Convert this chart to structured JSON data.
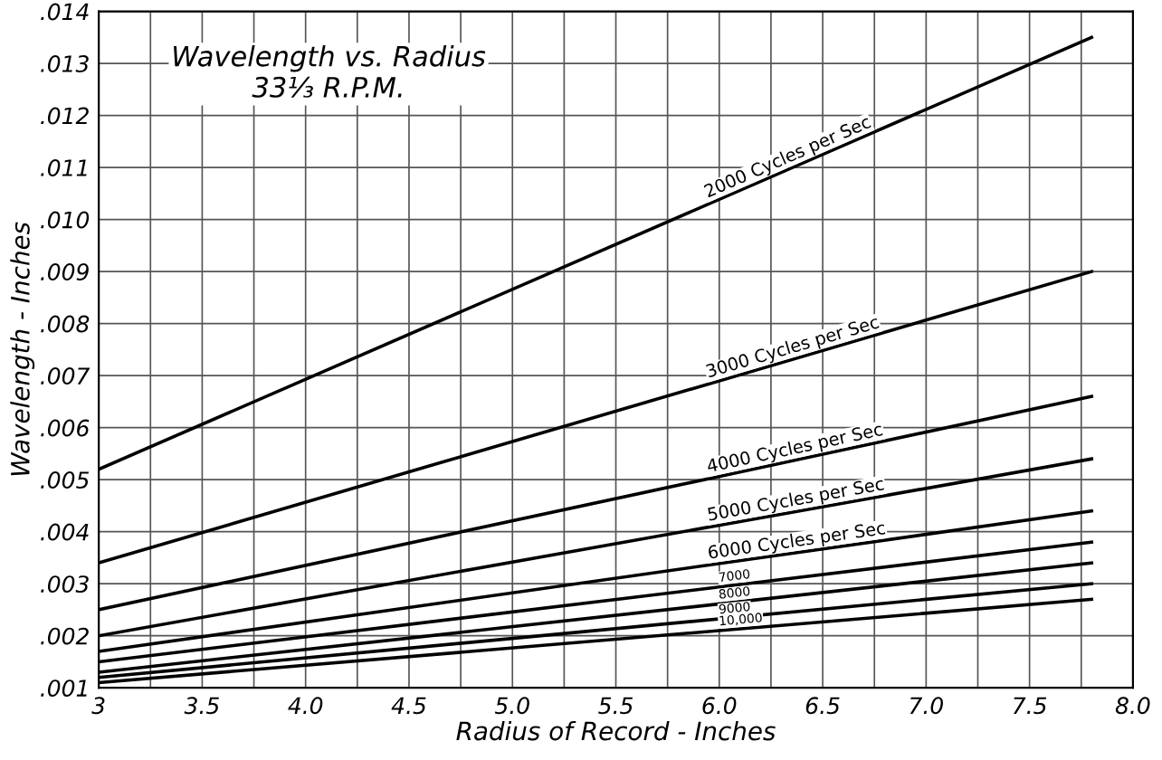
{
  "chart_data": {
    "type": "line",
    "title": "Wavelength vs. Radius\n33⅓ R.P.M.",
    "xlabel": "Radius of Record - Inches",
    "ylabel": "Wavelength - Inches",
    "x": [
      3,
      7.8
    ],
    "series": [
      {
        "name": "2000 Cycles per Sec",
        "color": "#000000",
        "values": [
          0.0052,
          0.0135
        ]
      },
      {
        "name": "3000 Cycles per Sec",
        "color": "#000000",
        "values": [
          0.0034,
          0.009
        ]
      },
      {
        "name": "4000 Cycles per Sec",
        "color": "#000000",
        "values": [
          0.0025,
          0.0066
        ]
      },
      {
        "name": "5000 Cycles per Sec",
        "color": "#000000",
        "values": [
          0.002,
          0.0054
        ]
      },
      {
        "name": "6000 Cycles per Sec",
        "color": "#000000",
        "values": [
          0.0017,
          0.0044
        ]
      },
      {
        "name": "7000",
        "color": "#000000",
        "values": [
          0.0015,
          0.0038
        ]
      },
      {
        "name": "8000",
        "color": "#000000",
        "values": [
          0.0013,
          0.0034
        ]
      },
      {
        "name": "9000",
        "color": "#000000",
        "values": [
          0.0012,
          0.003
        ]
      },
      {
        "name": "10,000",
        "color": "#000000",
        "values": [
          0.0011,
          0.0027
        ]
      }
    ],
    "xlim": [
      3,
      8
    ],
    "xticks": [
      3,
      {
        "value": 3.25,
        "label": null
      },
      3.5,
      {
        "value": 3.75,
        "label": null
      },
      {
        "value": 4.0,
        "label": "4.0"
      },
      {
        "value": 4.25,
        "label": null
      },
      4.5,
      {
        "value": 4.75,
        "label": null
      },
      {
        "value": 5.0,
        "label": "5.0"
      },
      {
        "value": 5.25,
        "label": null
      },
      5.5,
      {
        "value": 5.75,
        "label": null
      },
      {
        "value": 6.0,
        "label": "6.0"
      },
      {
        "value": 6.25,
        "label": null
      },
      6.5,
      {
        "value": 6.75,
        "label": null
      },
      {
        "value": 7.0,
        "label": "7.0"
      },
      {
        "value": 7.25,
        "label": null
      },
      7.5,
      {
        "value": 7.75,
        "label": null
      },
      {
        "value": 8.0,
        "label": "8.0"
      }
    ],
    "ylim": [
      0.001,
      0.014
    ],
    "yticks": [
      {
        "value": 0.001,
        "label": ".001"
      },
      {
        "value": 0.002,
        "label": ".002"
      },
      {
        "value": 0.003,
        "label": ".003"
      },
      {
        "value": 0.004,
        "label": ".004"
      },
      {
        "value": 0.005,
        "label": ".005"
      },
      {
        "value": 0.006,
        "label": ".006"
      },
      {
        "value": 0.007,
        "label": ".007"
      },
      {
        "value": 0.008,
        "label": ".008"
      },
      {
        "value": 0.009,
        "label": ".009"
      },
      {
        "value": 0.01,
        "label": ".010"
      },
      {
        "value": 0.011,
        "label": ".011"
      },
      {
        "value": 0.012,
        "label": ".012"
      },
      {
        "value": 0.013,
        "label": ".013"
      },
      {
        "value": 0.014,
        "label": ".014"
      }
    ],
    "grid": true,
    "marker": "none",
    "line_style": "solid",
    "legend": false
  }
}
